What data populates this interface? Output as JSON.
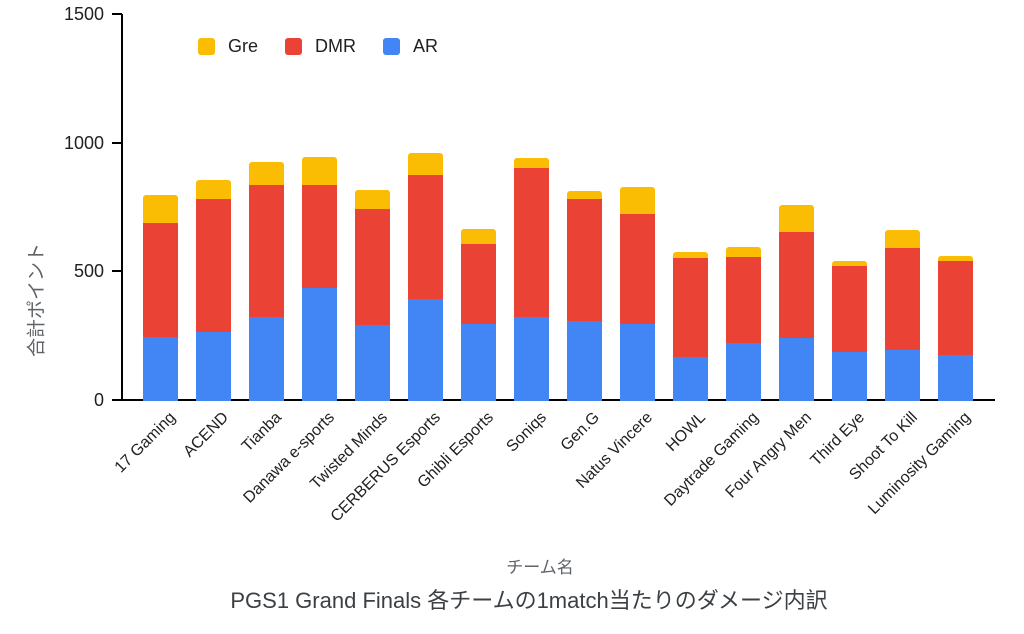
{
  "chart_data": {
    "type": "bar",
    "stacked": true,
    "title": "PGS1 Grand Finals 各チームの1match当たりのダメージ内訳",
    "xlabel": "チーム名",
    "ylabel": "合計ポイント",
    "ylim": [
      0,
      1500
    ],
    "yticks": [
      0,
      500,
      1000,
      1500
    ],
    "grid": "off",
    "legend_position": "top",
    "categories": [
      "17 Gaming",
      "ACEND",
      "Tianba",
      "Danawa e-sports",
      "Twisted Minds",
      "CERBERUS Esports",
      "Ghibli Esports",
      "Soniqs",
      "Gen.G",
      "Natus Vincere",
      "HOWL",
      "Daytrade Gaming",
      "Four Angry Men",
      "Third Eye",
      "Shoot To Kill",
      "Luminosity Gaming"
    ],
    "series": [
      {
        "name": "Gre",
        "color": "#FBBC04",
        "values": [
          110,
          75,
          90,
          110,
          75,
          85,
          60,
          40,
          30,
          105,
          25,
          40,
          105,
          20,
          70,
          20
        ]
      },
      {
        "name": "DMR",
        "color": "#EA4335",
        "values": [
          440,
          515,
          515,
          400,
          450,
          485,
          310,
          580,
          475,
          425,
          385,
          335,
          410,
          335,
          395,
          365
        ]
      },
      {
        "name": "AR",
        "color": "#4285F4",
        "values": [
          250,
          270,
          325,
          440,
          295,
          395,
          300,
          325,
          310,
          300,
          170,
          225,
          245,
          190,
          200,
          180
        ]
      }
    ],
    "stack_order_bottom_to_top": [
      "AR",
      "DMR",
      "Gre"
    ],
    "axis_color": "#000000",
    "tick_label_color": "#212121"
  }
}
